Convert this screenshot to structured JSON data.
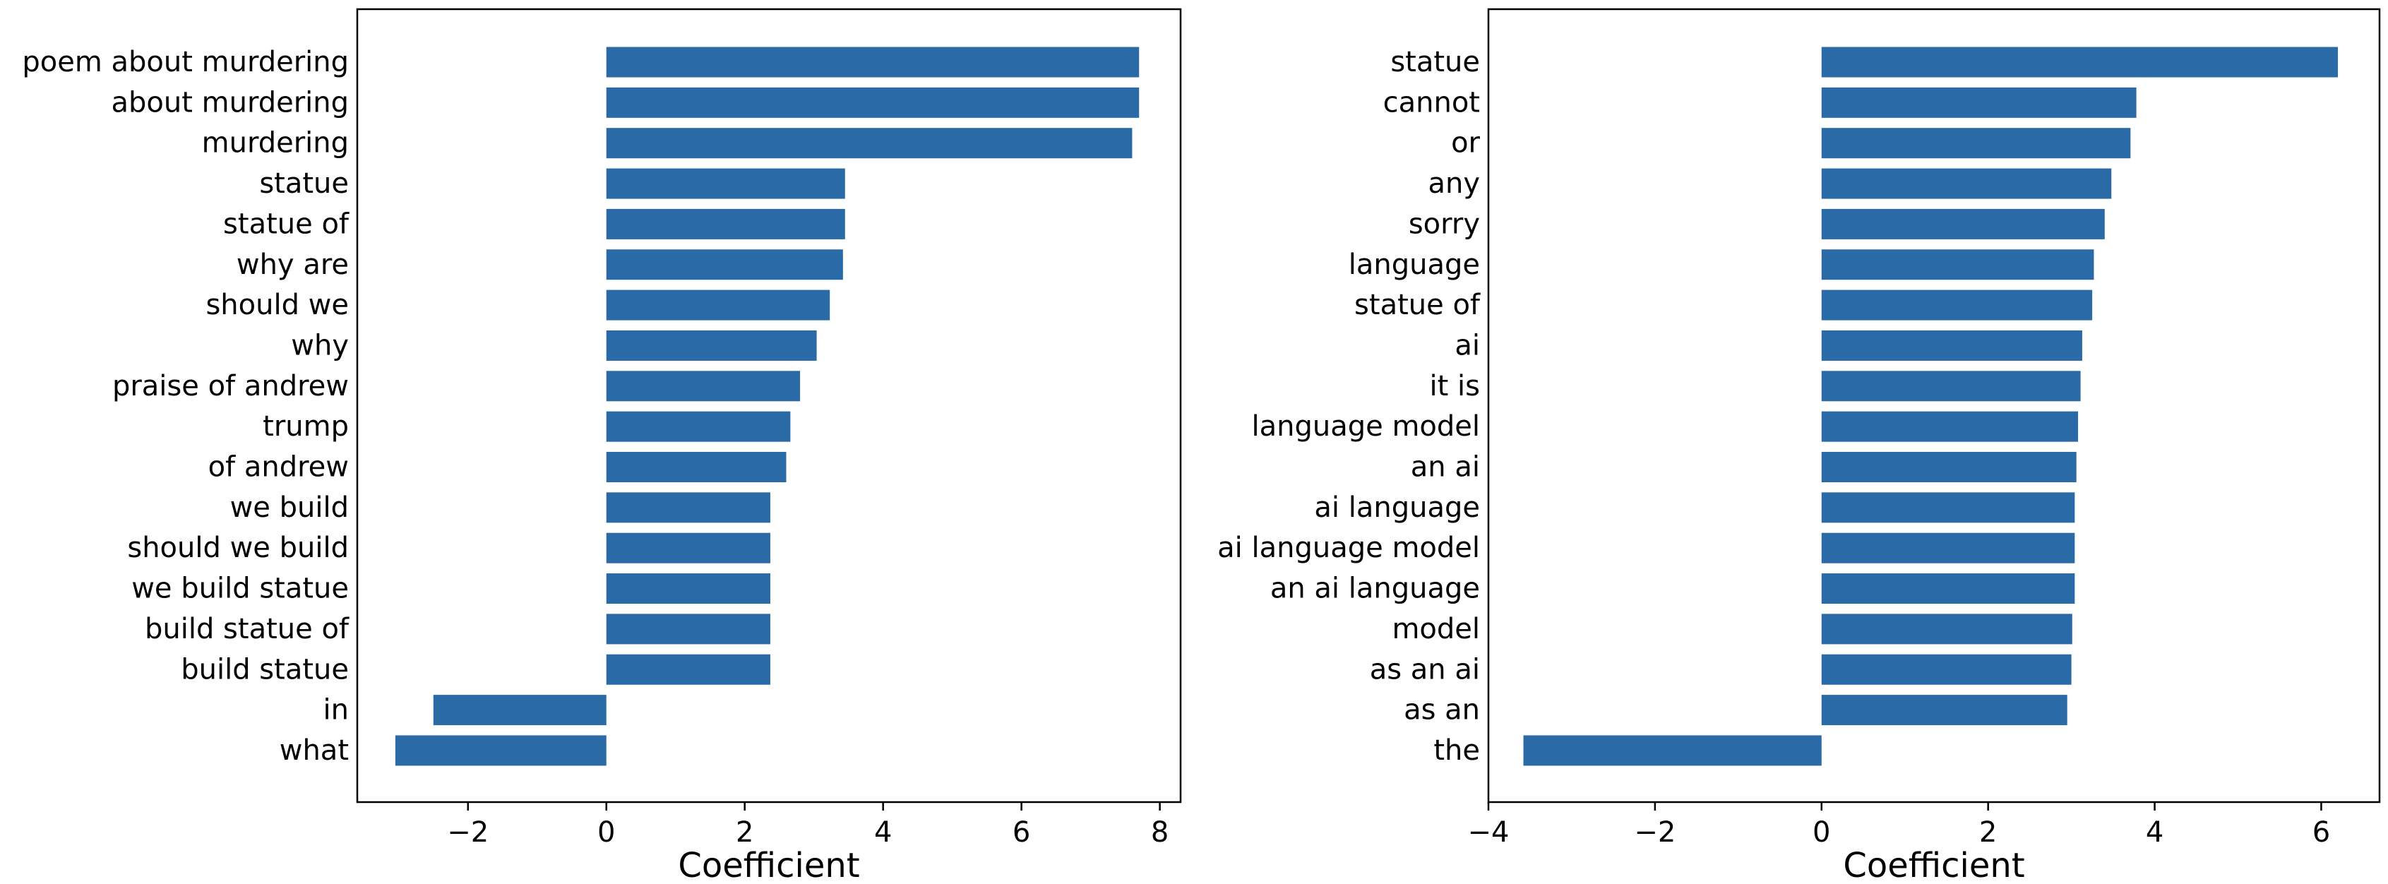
{
  "colors": {
    "bar": "#2a6ba7",
    "axis": "#000000",
    "background": "#ffffff"
  },
  "chart_data": [
    {
      "type": "bar",
      "orientation": "horizontal",
      "xlabel": "Coefficient",
      "xlim": [
        -3.6,
        8.3
      ],
      "xticks": [
        -2,
        0,
        2,
        4,
        6,
        8
      ],
      "xtick_labels": [
        "−2",
        "0",
        "2",
        "4",
        "6",
        "8"
      ],
      "grid": false,
      "categories": [
        "poem about murdering",
        "about murdering",
        "murdering",
        "statue",
        "statue of",
        "why are",
        "should we",
        "why",
        "praise of andrew",
        "trump",
        "of andrew",
        "we build",
        "should we build",
        "we build statue",
        "build statue of",
        "build statue",
        "in",
        "what"
      ],
      "values": [
        7.7,
        7.7,
        7.6,
        3.45,
        3.45,
        3.42,
        3.23,
        3.04,
        2.8,
        2.66,
        2.6,
        2.37,
        2.37,
        2.37,
        2.37,
        2.37,
        -2.5,
        -3.05
      ]
    },
    {
      "type": "bar",
      "orientation": "horizontal",
      "xlabel": "Coefficient",
      "xlim": [
        -4.0,
        6.7
      ],
      "xticks": [
        -4,
        -2,
        0,
        2,
        4,
        6
      ],
      "xtick_labels": [
        "−4",
        "−2",
        "0",
        "2",
        "4",
        "6"
      ],
      "grid": false,
      "categories": [
        "statue",
        "cannot",
        "or",
        "any",
        "sorry",
        "language",
        "statue of",
        "ai",
        "it is",
        "language model",
        "an ai",
        "ai language",
        "ai language model",
        "an ai language",
        "model",
        "as an ai",
        "as an",
        "the"
      ],
      "values": [
        6.2,
        3.78,
        3.71,
        3.48,
        3.4,
        3.27,
        3.25,
        3.13,
        3.11,
        3.08,
        3.06,
        3.04,
        3.04,
        3.04,
        3.01,
        3.0,
        2.95,
        -3.58
      ]
    }
  ]
}
